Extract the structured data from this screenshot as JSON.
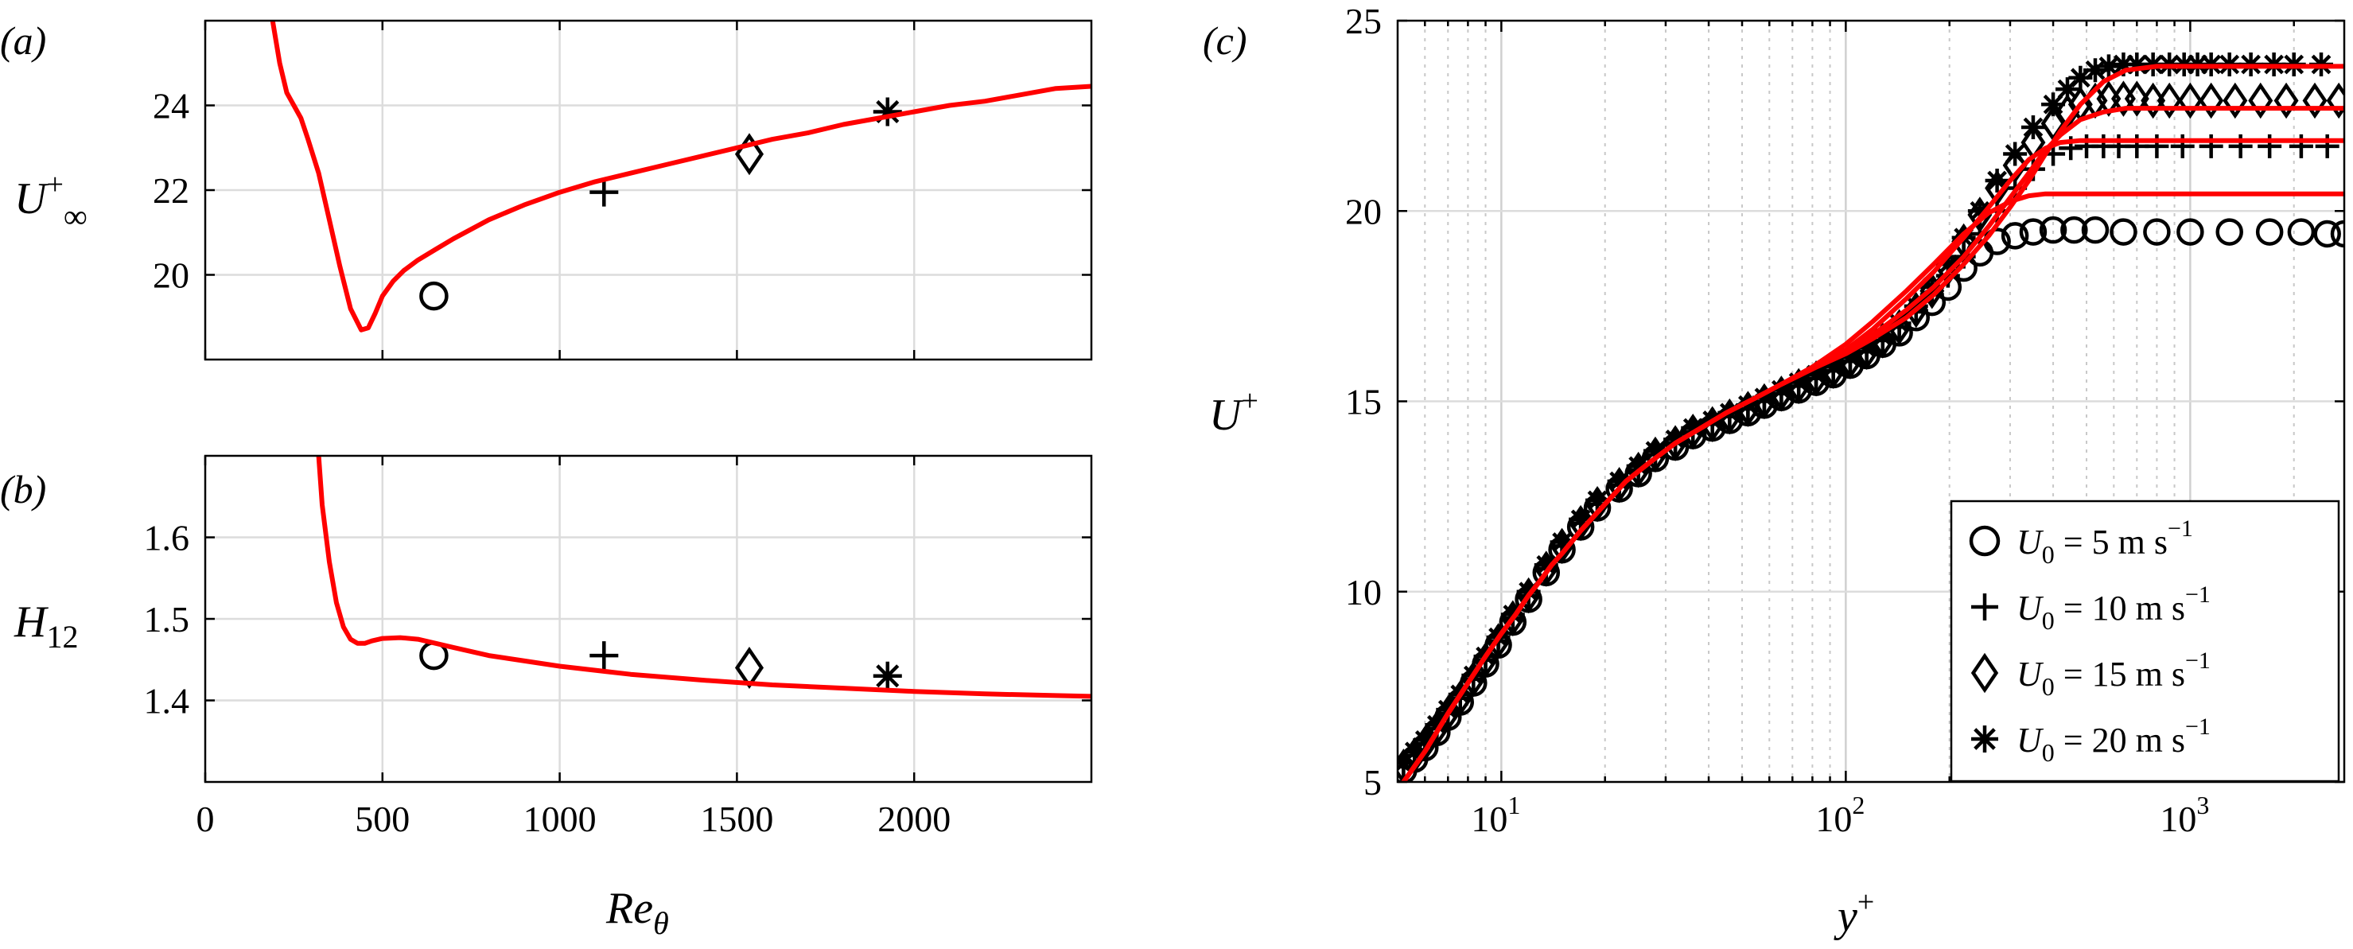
{
  "chart_data": [
    {
      "panel": "(a)",
      "type": "line",
      "ylabel": "U∞+",
      "xlim": [
        0,
        2500
      ],
      "ylim": [
        18,
        26
      ],
      "xticks": [
        0,
        500,
        1000,
        1500,
        2000
      ],
      "yticks": [
        20,
        22,
        24
      ],
      "grid": true,
      "series": [
        {
          "marker": "line",
          "color": "#ff0000",
          "x": [
            190,
            210,
            230,
            250,
            270,
            290,
            320,
            350,
            380,
            410,
            440,
            460,
            480,
            500,
            530,
            560,
            600,
            650,
            700,
            800,
            900,
            1000,
            1100,
            1200,
            1300,
            1400,
            1500,
            1600,
            1700,
            1800,
            1900,
            2000,
            2100,
            2200,
            2300,
            2400,
            2500
          ],
          "y": [
            26,
            25.0,
            24.3,
            24.0,
            23.7,
            23.2,
            22.4,
            21.3,
            20.2,
            19.2,
            18.7,
            18.75,
            19.1,
            19.5,
            19.85,
            20.1,
            20.35,
            20.6,
            20.85,
            21.3,
            21.65,
            21.95,
            22.2,
            22.4,
            22.6,
            22.8,
            23.0,
            23.2,
            23.35,
            23.55,
            23.7,
            23.85,
            24.0,
            24.1,
            24.25,
            24.4,
            24.45
          ]
        },
        {
          "marker": "circle",
          "x": [
            645
          ],
          "y": [
            19.5
          ]
        },
        {
          "marker": "plus",
          "x": [
            1125
          ],
          "y": [
            21.95
          ]
        },
        {
          "marker": "diamond",
          "x": [
            1535
          ],
          "y": [
            22.85
          ]
        },
        {
          "marker": "asterisk",
          "x": [
            1925
          ],
          "y": [
            23.85
          ]
        }
      ]
    },
    {
      "panel": "(b)",
      "type": "line",
      "xlabel": "Reθ",
      "ylabel": "H12",
      "xlim": [
        0,
        2500
      ],
      "ylim": [
        1.3,
        1.7
      ],
      "xticks": [
        0,
        500,
        1000,
        1500,
        2000
      ],
      "yticks": [
        1.4,
        1.5,
        1.6
      ],
      "grid": true,
      "series": [
        {
          "marker": "line",
          "color": "#ff0000",
          "x": [
            320,
            330,
            350,
            370,
            390,
            410,
            430,
            450,
            470,
            500,
            550,
            600,
            700,
            800,
            1000,
            1200,
            1400,
            1600,
            1800,
            2000,
            2200,
            2400,
            2500
          ],
          "y": [
            1.7,
            1.64,
            1.57,
            1.52,
            1.49,
            1.475,
            1.47,
            1.47,
            1.473,
            1.476,
            1.477,
            1.475,
            1.465,
            1.455,
            1.442,
            1.432,
            1.425,
            1.419,
            1.415,
            1.411,
            1.408,
            1.406,
            1.405
          ]
        },
        {
          "marker": "circle",
          "x": [
            645
          ],
          "y": [
            1.455
          ]
        },
        {
          "marker": "plus",
          "x": [
            1125
          ],
          "y": [
            1.455
          ]
        },
        {
          "marker": "diamond",
          "x": [
            1535
          ],
          "y": [
            1.44
          ]
        },
        {
          "marker": "asterisk",
          "x": [
            1925
          ],
          "y": [
            1.43
          ]
        }
      ]
    },
    {
      "panel": "(c)",
      "type": "scatter",
      "xscale": "log",
      "xlabel": "y+",
      "ylabel": "U+",
      "xlim": [
        5,
        2800
      ],
      "ylim": [
        5,
        25
      ],
      "yticks": [
        5,
        10,
        15,
        20,
        25
      ],
      "xtick_labels": [
        {
          "base": "10",
          "exp": "1",
          "value": 10
        },
        {
          "base": "10",
          "exp": "2",
          "value": 100
        },
        {
          "base": "10",
          "exp": "3",
          "value": 1000
        }
      ],
      "grid": true,
      "legend": "bottom-right",
      "legend_entries": [
        {
          "marker": "circle",
          "text": "U0 = 5 m s−1"
        },
        {
          "marker": "plus",
          "text": "U0 = 10 m s−1"
        },
        {
          "marker": "diamond",
          "text": "U0 = 15 m s−1"
        },
        {
          "marker": "asterisk",
          "text": "U0 = 20 m s−1"
        }
      ],
      "series": [
        {
          "name": "U0 = 5 m s−1",
          "marker": "circle",
          "x": [
            5.2,
            5.6,
            6,
            6.5,
            7,
            7.6,
            8.3,
            9,
            9.8,
            10.8,
            12,
            13.5,
            15,
            17,
            19,
            22,
            25,
            28,
            32,
            36,
            41,
            46,
            52,
            58,
            65,
            73,
            82,
            92,
            103,
            115,
            128,
            143,
            160,
            178,
            198,
            220,
            245,
            275,
            310,
            350,
            400,
            460,
            530,
            640,
            800,
            1000,
            1300,
            1700,
            2100,
            2500,
            2800
          ],
          "y": [
            5.3,
            5.6,
            5.9,
            6.3,
            6.7,
            7.1,
            7.6,
            8.1,
            8.6,
            9.2,
            9.8,
            10.5,
            11.1,
            11.7,
            12.2,
            12.7,
            13.1,
            13.5,
            13.8,
            14.1,
            14.3,
            14.5,
            14.7,
            14.9,
            15.1,
            15.3,
            15.5,
            15.7,
            15.95,
            16.2,
            16.5,
            16.8,
            17.2,
            17.6,
            18.0,
            18.5,
            18.9,
            19.2,
            19.35,
            19.45,
            19.5,
            19.5,
            19.5,
            19.45,
            19.45,
            19.45,
            19.45,
            19.45,
            19.45,
            19.4,
            19.4
          ]
        },
        {
          "name": "U0 = 10 m s−1",
          "marker": "plus",
          "x": [
            5.2,
            5.6,
            6,
            6.5,
            7,
            7.6,
            8.3,
            9,
            9.8,
            10.8,
            12,
            13.5,
            15,
            17,
            19,
            22,
            25,
            28,
            32,
            36,
            41,
            46,
            52,
            58,
            65,
            73,
            82,
            92,
            103,
            115,
            128,
            143,
            160,
            178,
            198,
            220,
            245,
            275,
            310,
            350,
            400,
            450,
            500,
            560,
            620,
            700,
            800,
            950,
            1150,
            1400,
            1700,
            2100,
            2500
          ],
          "y": [
            5.4,
            5.7,
            6.0,
            6.4,
            6.8,
            7.2,
            7.7,
            8.2,
            8.7,
            9.3,
            9.9,
            10.6,
            11.2,
            11.8,
            12.3,
            12.8,
            13.2,
            13.6,
            13.9,
            14.2,
            14.4,
            14.6,
            14.8,
            15.0,
            15.2,
            15.4,
            15.6,
            15.8,
            16.05,
            16.3,
            16.6,
            16.95,
            17.35,
            17.8,
            18.3,
            18.8,
            19.4,
            20.0,
            20.6,
            21.1,
            21.5,
            21.65,
            21.7,
            21.7,
            21.7,
            21.7,
            21.7,
            21.7,
            21.7,
            21.7,
            21.7,
            21.7,
            21.7
          ]
        },
        {
          "name": "U0 = 15 m s−1",
          "marker": "diamond",
          "x": [
            5.2,
            5.6,
            6,
            6.5,
            7,
            7.6,
            8.3,
            9,
            9.8,
            10.8,
            12,
            13.5,
            15,
            17,
            19,
            22,
            25,
            28,
            32,
            36,
            41,
            46,
            52,
            58,
            65,
            73,
            82,
            92,
            103,
            115,
            128,
            143,
            160,
            178,
            198,
            220,
            245,
            275,
            310,
            350,
            400,
            440,
            480,
            530,
            580,
            640,
            700,
            780,
            870,
            1000,
            1150,
            1350,
            1600,
            1900,
            2300,
            2700
          ],
          "y": [
            5.4,
            5.7,
            6.0,
            6.4,
            6.8,
            7.2,
            7.7,
            8.2,
            8.7,
            9.3,
            9.9,
            10.6,
            11.2,
            11.8,
            12.3,
            12.8,
            13.2,
            13.6,
            13.9,
            14.2,
            14.4,
            14.6,
            14.8,
            15.0,
            15.2,
            15.4,
            15.6,
            15.8,
            16.05,
            16.3,
            16.6,
            16.95,
            17.4,
            17.9,
            18.5,
            19.2,
            19.9,
            20.6,
            21.2,
            21.8,
            22.3,
            22.6,
            22.8,
            22.9,
            22.95,
            22.95,
            22.95,
            22.9,
            22.9,
            22.9,
            22.9,
            22.9,
            22.9,
            22.9,
            22.9,
            22.9
          ]
        },
        {
          "name": "U0 = 20 m s−1",
          "marker": "asterisk",
          "x": [
            5.2,
            5.6,
            6,
            6.5,
            7,
            7.6,
            8.3,
            9,
            9.8,
            10.8,
            12,
            13.5,
            15,
            17,
            19,
            22,
            25,
            28,
            32,
            36,
            41,
            46,
            52,
            58,
            65,
            73,
            82,
            92,
            103,
            115,
            128,
            143,
            160,
            178,
            198,
            220,
            245,
            275,
            310,
            350,
            400,
            440,
            480,
            530,
            580,
            640,
            700,
            780,
            870,
            960,
            1050,
            1150,
            1300,
            1500,
            1750,
            2000,
            2400
          ],
          "y": [
            5.5,
            5.8,
            6.1,
            6.5,
            6.9,
            7.3,
            7.8,
            8.3,
            8.8,
            9.4,
            10.0,
            10.7,
            11.3,
            11.9,
            12.4,
            12.9,
            13.3,
            13.7,
            14.0,
            14.3,
            14.5,
            14.7,
            14.9,
            15.1,
            15.3,
            15.5,
            15.7,
            15.9,
            16.15,
            16.4,
            16.7,
            17.05,
            17.5,
            18.0,
            18.6,
            19.3,
            20.0,
            20.8,
            21.5,
            22.2,
            22.8,
            23.2,
            23.5,
            23.7,
            23.8,
            23.85,
            23.85,
            23.85,
            23.85,
            23.85,
            23.85,
            23.85,
            23.85,
            23.85,
            23.85,
            23.85,
            23.85
          ]
        },
        {
          "marker": "line",
          "color": "#ff0000",
          "x": [
            5.2,
            6,
            7,
            8,
            9,
            10,
            11,
            12,
            13,
            14,
            15,
            17,
            20,
            23,
            27,
            32,
            38,
            45,
            55,
            65,
            80,
            100,
            120,
            150,
            180,
            220,
            260,
            300,
            340,
            380,
            420,
            480,
            600,
            800,
            1200,
            2000,
            2800
          ],
          "y": [
            5.0,
            5.8,
            6.8,
            7.6,
            8.3,
            8.9,
            9.4,
            9.9,
            10.3,
            10.7,
            11.0,
            11.6,
            12.3,
            12.9,
            13.4,
            13.9,
            14.3,
            14.7,
            15.1,
            15.45,
            15.9,
            16.5,
            17.1,
            17.9,
            18.6,
            19.4,
            19.95,
            20.25,
            20.4,
            20.45,
            20.45,
            20.45,
            20.45,
            20.45,
            20.45,
            20.45,
            20.45
          ]
        },
        {
          "marker": "line",
          "color": "#ff0000",
          "x": [
            5.2,
            6,
            7,
            8,
            9,
            10,
            11,
            12,
            13,
            14,
            15,
            17,
            20,
            23,
            27,
            32,
            38,
            45,
            55,
            65,
            80,
            100,
            120,
            150,
            180,
            220,
            260,
            300,
            340,
            380,
            420,
            480,
            600,
            800,
            1200,
            2000,
            2800
          ],
          "y": [
            5.0,
            5.8,
            6.8,
            7.6,
            8.3,
            8.9,
            9.4,
            9.9,
            10.3,
            10.7,
            11.0,
            11.6,
            12.3,
            12.9,
            13.4,
            13.9,
            14.3,
            14.7,
            15.1,
            15.45,
            15.85,
            16.35,
            16.9,
            17.7,
            18.4,
            19.3,
            20.1,
            20.8,
            21.35,
            21.65,
            21.8,
            21.85,
            21.85,
            21.85,
            21.85,
            21.85,
            21.85
          ]
        },
        {
          "marker": "line",
          "color": "#ff0000",
          "x": [
            5.2,
            6,
            7,
            8,
            9,
            10,
            11,
            12,
            13,
            14,
            15,
            17,
            20,
            23,
            27,
            32,
            38,
            45,
            55,
            65,
            80,
            100,
            120,
            150,
            180,
            220,
            260,
            300,
            340,
            380,
            420,
            480,
            560,
            650,
            800,
            1200,
            2000,
            2800
          ],
          "y": [
            5.0,
            5.8,
            6.8,
            7.6,
            8.3,
            8.9,
            9.4,
            9.9,
            10.3,
            10.7,
            11.0,
            11.6,
            12.3,
            12.9,
            13.4,
            13.9,
            14.3,
            14.7,
            15.1,
            15.45,
            15.85,
            16.3,
            16.75,
            17.4,
            18.0,
            18.8,
            19.6,
            20.35,
            21.0,
            21.6,
            22.0,
            22.4,
            22.6,
            22.7,
            22.7,
            22.7,
            22.7,
            22.7
          ]
        },
        {
          "marker": "line",
          "color": "#ff0000",
          "x": [
            5.2,
            6,
            7,
            8,
            9,
            10,
            11,
            12,
            13,
            14,
            15,
            17,
            20,
            23,
            27,
            32,
            38,
            45,
            55,
            65,
            80,
            100,
            120,
            150,
            180,
            220,
            260,
            300,
            340,
            380,
            420,
            480,
            560,
            650,
            800,
            1200,
            2000,
            2800
          ],
          "y": [
            5.0,
            5.8,
            6.8,
            7.6,
            8.3,
            8.9,
            9.4,
            9.9,
            10.3,
            10.7,
            11.0,
            11.6,
            12.3,
            12.9,
            13.4,
            13.9,
            14.3,
            14.7,
            15.1,
            15.45,
            15.85,
            16.25,
            16.65,
            17.2,
            17.8,
            18.6,
            19.35,
            20.1,
            20.8,
            21.5,
            22.1,
            22.8,
            23.4,
            23.7,
            23.8,
            23.8,
            23.8,
            23.8
          ]
        }
      ]
    }
  ]
}
